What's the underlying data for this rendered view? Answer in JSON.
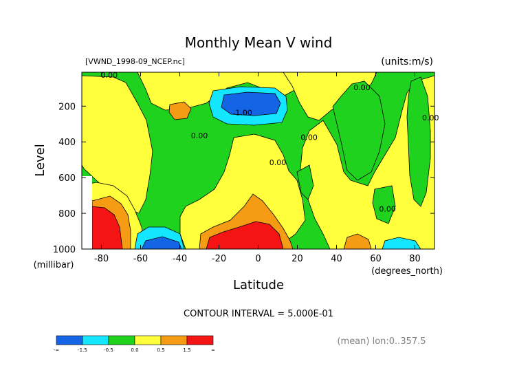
{
  "chart_data": {
    "type": "contour",
    "title": "Monthly Mean V wind",
    "source_label": "[VWND_1998-09_NCEP.nc]",
    "units_label": "(units:m/s)",
    "xlabel": "Latitude",
    "x_units": "(degrees_north)",
    "ylabel": "Level",
    "y_units": "(millibar)",
    "xlim": [
      -90,
      90
    ],
    "ylim": [
      1000,
      10
    ],
    "x_ticks": [
      -80,
      -60,
      -40,
      -20,
      0,
      20,
      40,
      60,
      80
    ],
    "y_ticks": [
      200,
      400,
      600,
      800,
      1000
    ],
    "contour_interval_text": "CONTOUR INTERVAL = 5.000E-01",
    "contour_labels": [
      {
        "text": "0.00",
        "lat": -76,
        "lev": 10
      },
      {
        "text": "-1.00",
        "lat": -8,
        "lev": 250
      },
      {
        "text": "0.00",
        "lat": -30,
        "lev": 380
      },
      {
        "text": "0.00",
        "lat": 26,
        "lev": 390
      },
      {
        "text": "0.00",
        "lat": 10,
        "lev": 530
      },
      {
        "text": "0.00",
        "lat": 53,
        "lev": 110
      },
      {
        "text": "0.00",
        "lat": 88,
        "lev": 280
      },
      {
        "text": "0.00",
        "lat": 66,
        "lev": 790
      }
    ],
    "colorbar": {
      "ticks": [
        "-∞",
        "-1.5",
        "-0.5",
        "0.0",
        "0.5",
        "1.5",
        "∞"
      ],
      "colors": [
        "#1464e6",
        "#14e6ff",
        "#1ed21e",
        "#ffff3c",
        "#f59b14",
        "#f51414"
      ]
    },
    "footer_note": "(mean) lon:0..357.5"
  }
}
